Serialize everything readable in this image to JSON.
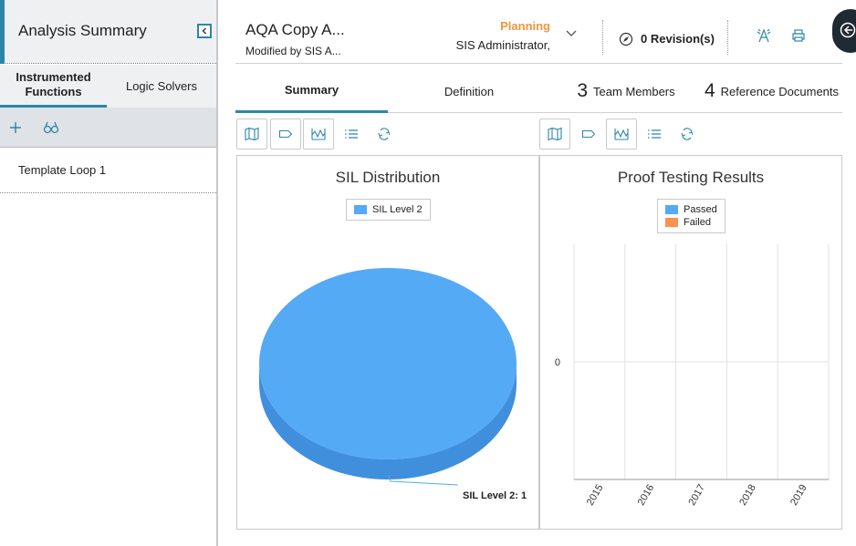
{
  "left_panel": {
    "title": "Analysis Summary",
    "tabs": [
      {
        "label_line1": "Instrumented",
        "label_line2": "Functions",
        "active": true
      },
      {
        "label": "Logic Solvers",
        "active": false
      }
    ],
    "toolbar_icons": [
      "plus-icon",
      "binoculars-icon"
    ],
    "items": [
      {
        "label": "Template Loop 1"
      }
    ]
  },
  "header": {
    "title": "AQA Copy A...",
    "subtitle": "Modified by SIS A...",
    "state": "Planning",
    "state_user": "SIS Administrator,",
    "revisions": "0 Revision(s)",
    "icons": [
      "compass-icon",
      "tower-icon",
      "print-icon",
      "sidebar-toggle-icon"
    ]
  },
  "tabs": [
    {
      "label": "Summary",
      "count": "",
      "active": true
    },
    {
      "label": "Definition",
      "count": "",
      "active": false
    },
    {
      "label": "Team Members",
      "count": "3",
      "active": false
    },
    {
      "label": "Reference Documents",
      "count": "4",
      "active": false
    }
  ],
  "chart_toolbar_icons": [
    "map-icon",
    "tag-icon",
    "chart-icon",
    "list-icon",
    "refresh-icon"
  ],
  "colors": {
    "accent": "#2c87a6",
    "planning": "#f0963c",
    "passed": "#55aaf5",
    "failed": "#fb9250",
    "pie_top": "#55aaf5",
    "pie_side": "#3f8fdd"
  },
  "chart_data": [
    {
      "type": "pie",
      "title": "SIL Distribution",
      "legend": [
        "SIL Level 2"
      ],
      "slices": [
        {
          "label": "SIL Level 2",
          "value": 1
        }
      ],
      "data_labels": [
        "SIL Level 2: 1"
      ]
    },
    {
      "type": "bar",
      "title": "Proof Testing Results",
      "legend": [
        "Passed",
        "Failed"
      ],
      "categories": [
        "2015",
        "2016",
        "2017",
        "2018",
        "2019"
      ],
      "series": [
        {
          "name": "Passed",
          "values": [
            0,
            0,
            0,
            0,
            0
          ]
        },
        {
          "name": "Failed",
          "values": [
            0,
            0,
            0,
            0,
            0
          ]
        }
      ],
      "y_ticks": [
        "0"
      ],
      "grid": true
    }
  ]
}
